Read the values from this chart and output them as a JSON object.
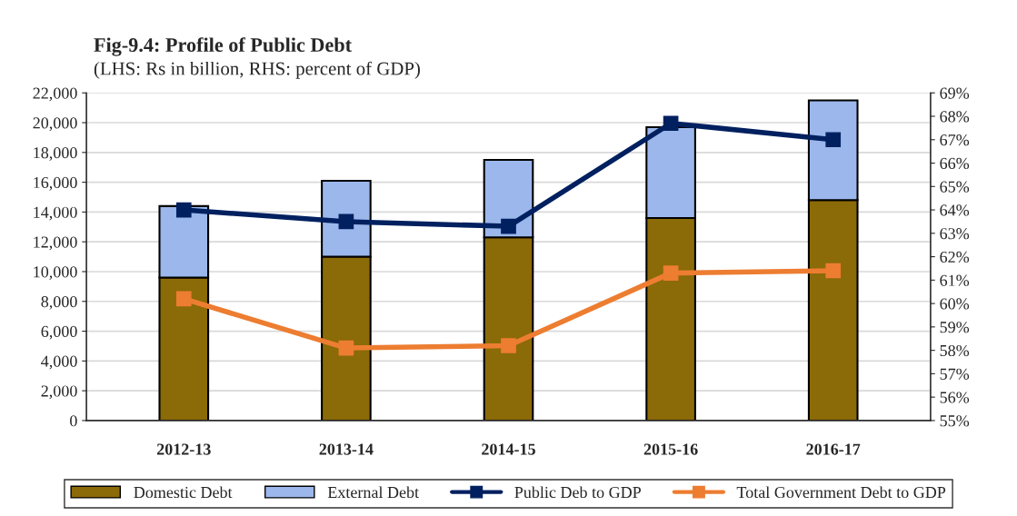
{
  "chart_data": {
    "type": "bar",
    "title": "Fig-9.4: Profile of Public Debt",
    "subtitle": "(LHS: Rs in billion, RHS: percent of GDP)",
    "categories": [
      "2012-13",
      "2013-14",
      "2014-15",
      "2015-16",
      "2016-17"
    ],
    "stacked": true,
    "series": [
      {
        "name": "Domestic Debt",
        "color": "#8b6a08",
        "values": [
          9600,
          11000,
          12300,
          13600,
          14800
        ]
      },
      {
        "name": "External Debt",
        "color": "#9bb7ec",
        "values": [
          4800,
          5100,
          5200,
          6100,
          6700
        ]
      },
      {
        "name": "Public Deb to GDP",
        "type": "line",
        "axis": "y2",
        "color": "#002060",
        "marker": "square",
        "values": [
          64.0,
          63.5,
          63.3,
          67.7,
          67.0
        ]
      },
      {
        "name": "Total Government Debt to GDP",
        "type": "line",
        "axis": "y2",
        "color": "#ed7d31",
        "marker": "square",
        "values": [
          60.2,
          58.1,
          58.2,
          61.3,
          61.4
        ]
      }
    ],
    "ylim": [
      0,
      22000
    ],
    "yticks": [
      {
        "value": 0,
        "label": "0"
      },
      {
        "value": 2000,
        "label": "2,000"
      },
      {
        "value": 4000,
        "label": "4,000"
      },
      {
        "value": 6000,
        "label": "6,000"
      },
      {
        "value": 8000,
        "label": "8,000"
      },
      {
        "value": 10000,
        "label": "10,000"
      },
      {
        "value": 12000,
        "label": "12,000"
      },
      {
        "value": 14000,
        "label": "14,000"
      },
      {
        "value": 16000,
        "label": "16,000"
      },
      {
        "value": 18000,
        "label": "18,000"
      },
      {
        "value": 20000,
        "label": "20,000"
      },
      {
        "value": 22000,
        "label": "22,000"
      }
    ],
    "y2lim": [
      55,
      69
    ],
    "y2ticks": [
      {
        "value": 55,
        "label": "55%"
      },
      {
        "value": 56,
        "label": "56%"
      },
      {
        "value": 57,
        "label": "57%"
      },
      {
        "value": 58,
        "label": "58%"
      },
      {
        "value": 59,
        "label": "59%"
      },
      {
        "value": 60,
        "label": "60%"
      },
      {
        "value": 61,
        "label": "61%"
      },
      {
        "value": 62,
        "label": "62%"
      },
      {
        "value": 63,
        "label": "63%"
      },
      {
        "value": 64,
        "label": "64%"
      },
      {
        "value": 65,
        "label": "65%"
      },
      {
        "value": 66,
        "label": "66%"
      },
      {
        "value": 67,
        "label": "67%"
      },
      {
        "value": 68,
        "label": "68%"
      },
      {
        "value": 69,
        "label": "69%"
      }
    ],
    "grid": "y",
    "legend": "bottom"
  }
}
